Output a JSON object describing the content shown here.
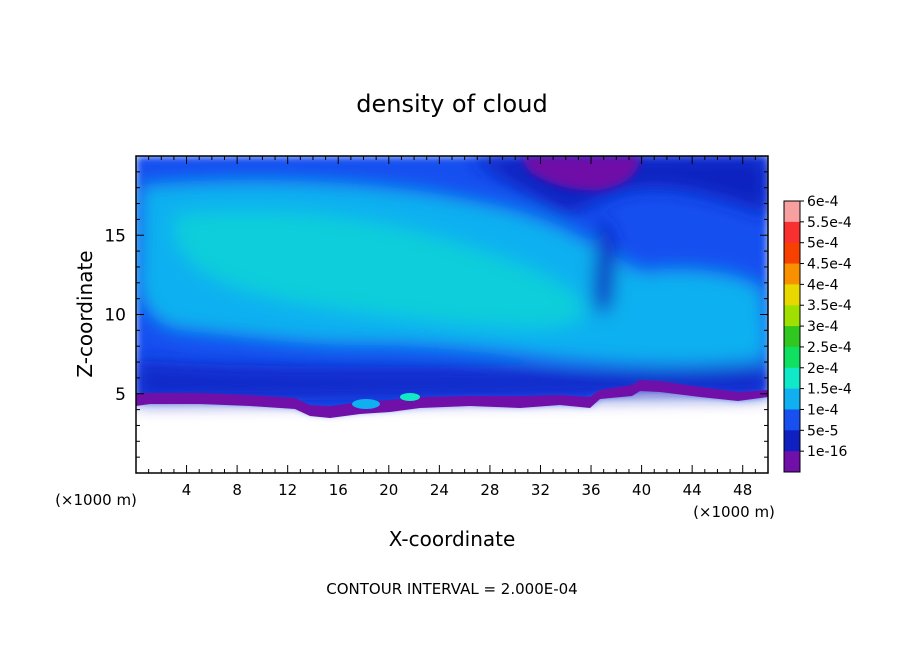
{
  "chart_data": {
    "type": "heatmap",
    "title": "density of cloud",
    "xlabel": "X-coordinate",
    "ylabel": "Z-coordinate",
    "x_unit": "(×1000 m)",
    "y_unit": "(×1000 m)",
    "xlim": [
      0,
      50
    ],
    "ylim": [
      0,
      20
    ],
    "x_ticks": [
      4,
      8,
      12,
      16,
      20,
      24,
      28,
      32,
      36,
      40,
      44,
      48
    ],
    "y_ticks": [
      5,
      10,
      15
    ],
    "footer": "CONTOUR INTERVAL = 2.000E-04",
    "colorbar": {
      "levels": [
        {
          "label": "6e-4",
          "color": "#f8a0a0"
        },
        {
          "label": "5.5e-4",
          "color": "#f83030"
        },
        {
          "label": "5e-4",
          "color": "#f84000"
        },
        {
          "label": "4.5e-4",
          "color": "#f89000"
        },
        {
          "label": "4e-4",
          "color": "#e8d800"
        },
        {
          "label": "3.5e-4",
          "color": "#a0e000"
        },
        {
          "label": "3e-4",
          "color": "#30c820"
        },
        {
          "label": "2.5e-4",
          "color": "#10e060"
        },
        {
          "label": "2e-4",
          "color": "#10e8c8"
        },
        {
          "label": "1.5e-4",
          "color": "#10b0f0"
        },
        {
          "label": "1e-4",
          "color": "#1850f0"
        },
        {
          "label": "5e-5",
          "color": "#1020c0"
        },
        {
          "label": "1e-16",
          "color": "#7010a8"
        }
      ]
    }
  }
}
